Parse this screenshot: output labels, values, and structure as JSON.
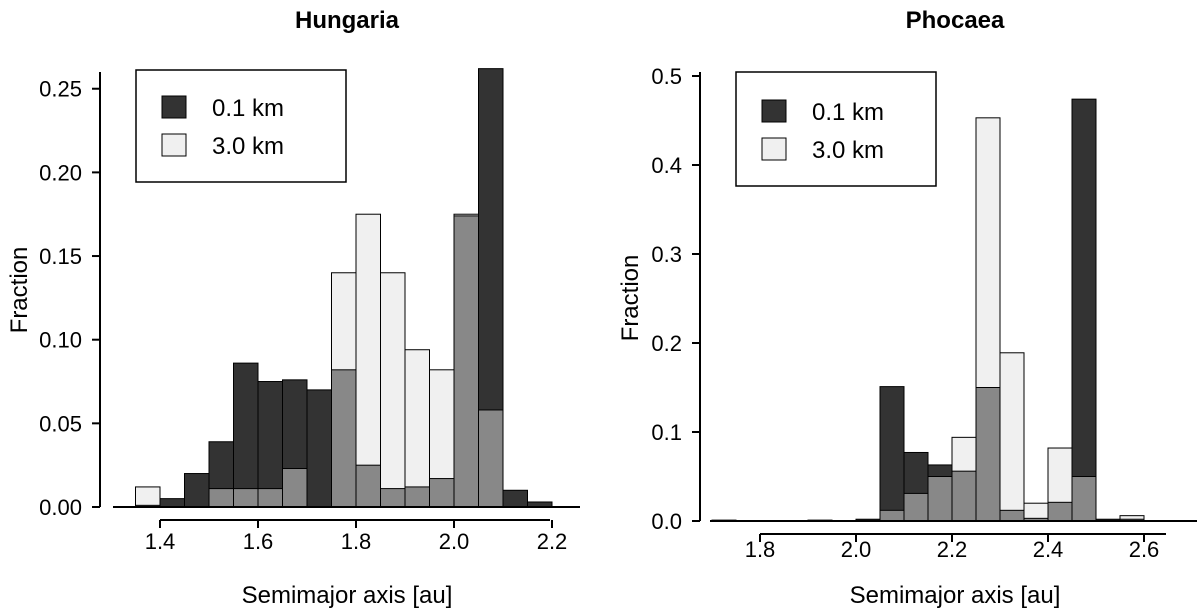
{
  "chart_data": [
    {
      "type": "bar",
      "title": "Hungaria",
      "xlabel": "Semimajor axis [au]",
      "ylabel": "Fraction",
      "xlim": [
        1.3,
        2.3
      ],
      "ylim": [
        0,
        0.26
      ],
      "xticks": [
        "1.4",
        "1.6",
        "1.8",
        "2.0",
        "2.2"
      ],
      "yticks": [
        "0.00",
        "0.05",
        "0.10",
        "0.15",
        "0.20",
        "0.25"
      ],
      "legend": {
        "position": "top-left",
        "entries": [
          "0.1 km",
          "3.0 km"
        ]
      },
      "bin_width": 0.05,
      "bin_starts": [
        1.35,
        1.4,
        1.45,
        1.5,
        1.55,
        1.6,
        1.65,
        1.7,
        1.75,
        1.8,
        1.85,
        1.9,
        1.95,
        2.0,
        2.05,
        2.1,
        2.15
      ],
      "series": [
        {
          "name": "0.1 km",
          "values": [
            0.001,
            0.005,
            0.02,
            0.039,
            0.086,
            0.075,
            0.076,
            0.07,
            0.082,
            0.025,
            0.011,
            0.012,
            0.017,
            0.174,
            0.262,
            0.01,
            0.003
          ]
        },
        {
          "name": "3.0 km",
          "values": [
            0.012,
            0.0,
            0.0,
            0.011,
            0.011,
            0.011,
            0.023,
            0.0,
            0.14,
            0.175,
            0.14,
            0.094,
            0.082,
            0.175,
            0.058,
            0.0,
            0.0
          ]
        }
      ]
    },
    {
      "type": "bar",
      "title": "Phocaea",
      "xlabel": "Semimajor axis [au]",
      "ylabel": "Fraction",
      "xlim": [
        1.7,
        2.7
      ],
      "ylim": [
        0,
        0.5
      ],
      "xticks": [
        "1.8",
        "2.0",
        "2.2",
        "2.4",
        "2.6"
      ],
      "yticks": [
        "0.0",
        "0.1",
        "0.2",
        "0.3",
        "0.4",
        "0.5"
      ],
      "legend": {
        "position": "top-left",
        "entries": [
          "0.1 km",
          "3.0 km"
        ]
      },
      "bin_width": 0.05,
      "bin_starts": [
        1.7,
        1.75,
        1.8,
        1.85,
        1.9,
        1.95,
        2.0,
        2.05,
        2.1,
        2.15,
        2.2,
        2.25,
        2.3,
        2.35,
        2.4,
        2.45,
        2.5,
        2.55,
        2.6,
        2.65
      ],
      "series": [
        {
          "name": "0.1 km",
          "values": [
            0.001,
            0.0,
            0.0,
            0.0,
            0.001,
            0.0,
            0.002,
            0.151,
            0.077,
            0.063,
            0.056,
            0.15,
            0.012,
            0.003,
            0.021,
            0.474,
            0.002,
            0.002,
            0.0,
            0.0
          ]
        },
        {
          "name": "3.0 km",
          "values": [
            0.0,
            0.0,
            0.0,
            0.0,
            0.0,
            0.0,
            0.0,
            0.012,
            0.031,
            0.05,
            0.094,
            0.453,
            0.189,
            0.02,
            0.082,
            0.05,
            0.0,
            0.006,
            0.0,
            0.0
          ]
        }
      ]
    }
  ],
  "colors": {
    "small": "#333333",
    "large": "#f0f0f0",
    "overlap": "#888888",
    "axis": "#000000"
  }
}
